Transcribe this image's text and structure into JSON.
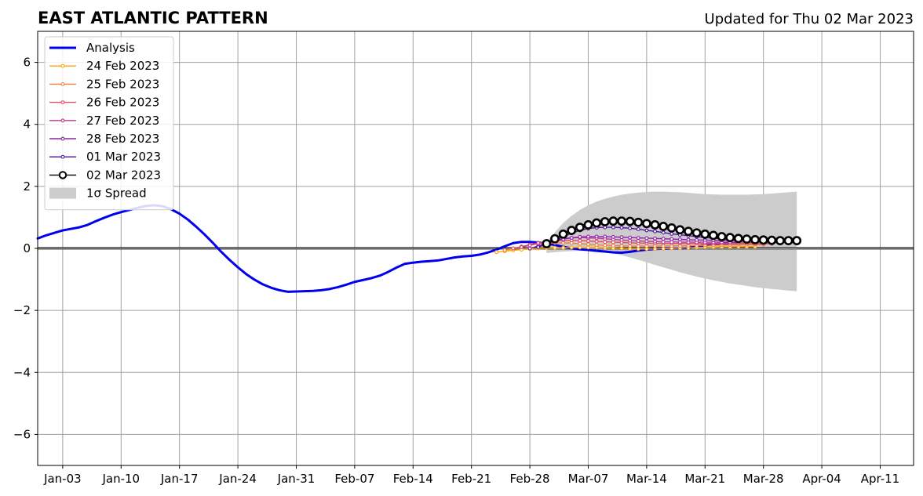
{
  "chart_data": {
    "type": "line",
    "title": "EAST ATLANTIC PATTERN",
    "subtitle": "Updated for Thu 02 Mar 2023",
    "xlabel": "",
    "ylabel": "",
    "x_axis": {
      "type": "date",
      "range": [
        "2022-12-31",
        "2023-04-15"
      ],
      "ticks": [
        {
          "date": "2023-01-03",
          "label": "Jan-03"
        },
        {
          "date": "2023-01-10",
          "label": "Jan-10"
        },
        {
          "date": "2023-01-17",
          "label": "Jan-17"
        },
        {
          "date": "2023-01-24",
          "label": "Jan-24"
        },
        {
          "date": "2023-01-31",
          "label": "Jan-31"
        },
        {
          "date": "2023-02-07",
          "label": "Feb-07"
        },
        {
          "date": "2023-02-14",
          "label": "Feb-14"
        },
        {
          "date": "2023-02-21",
          "label": "Feb-21"
        },
        {
          "date": "2023-02-28",
          "label": "Feb-28"
        },
        {
          "date": "2023-03-07",
          "label": "Mar-07"
        },
        {
          "date": "2023-03-14",
          "label": "Mar-14"
        },
        {
          "date": "2023-03-21",
          "label": "Mar-21"
        },
        {
          "date": "2023-03-28",
          "label": "Mar-28"
        },
        {
          "date": "2023-04-04",
          "label": "Apr-04"
        },
        {
          "date": "2023-04-11",
          "label": "Apr-11"
        }
      ]
    },
    "y_axis": {
      "range": [
        -7,
        7
      ],
      "ticks": [
        {
          "value": -6,
          "label": "−6"
        },
        {
          "value": -4,
          "label": "−4"
        },
        {
          "value": -2,
          "label": "−2"
        },
        {
          "value": 0,
          "label": "0"
        },
        {
          "value": 2,
          "label": "2"
        },
        {
          "value": 4,
          "label": "4"
        },
        {
          "value": 6,
          "label": "6"
        }
      ]
    },
    "grid": true,
    "zero_line": true,
    "legend": {
      "placement": "top-left"
    },
    "analysis": {
      "name": "Analysis",
      "color": "#0000ee",
      "start_date": "2022-12-31",
      "values": [
        0.32,
        0.42,
        0.5,
        0.58,
        0.63,
        0.68,
        0.76,
        0.88,
        0.99,
        1.09,
        1.17,
        1.24,
        1.31,
        1.37,
        1.39,
        1.36,
        1.26,
        1.12,
        0.93,
        0.7,
        0.45,
        0.18,
        -0.11,
        -0.37,
        -0.61,
        -0.83,
        -1.01,
        -1.16,
        -1.27,
        -1.35,
        -1.4,
        -1.39,
        -1.38,
        -1.37,
        -1.35,
        -1.31,
        -1.25,
        -1.17,
        -1.08,
        -1.02,
        -0.96,
        -0.88,
        -0.76,
        -0.62,
        -0.5,
        -0.46,
        -0.43,
        -0.41,
        -0.39,
        -0.34,
        -0.29,
        -0.26,
        -0.24,
        -0.2,
        -0.13,
        -0.04,
        0.07,
        0.17,
        0.21,
        0.21,
        0.19,
        0.16,
        0.11,
        0.05,
        0.0,
        -0.03,
        -0.05,
        -0.08,
        -0.1,
        -0.13,
        -0.14,
        -0.11,
        -0.07,
        -0.04,
        -0.02,
        -0.01,
        0.0,
        0.0,
        0.02,
        0.06,
        0.1,
        0.13,
        0.15,
        0.17,
        0.18
      ]
    },
    "spread": {
      "name": "1σ Spread",
      "color": "#cccccc",
      "start_date": "2023-03-02",
      "upper": [
        0.2,
        0.52,
        0.82,
        1.05,
        1.24,
        1.39,
        1.51,
        1.6,
        1.67,
        1.73,
        1.77,
        1.8,
        1.82,
        1.83,
        1.83,
        1.82,
        1.81,
        1.79,
        1.77,
        1.75,
        1.74,
        1.73,
        1.73,
        1.73,
        1.73,
        1.74,
        1.75,
        1.77,
        1.79,
        1.81,
        1.83
      ],
      "lower": [
        -0.15,
        -0.12,
        -0.1,
        -0.09,
        -0.08,
        -0.08,
        -0.09,
        -0.12,
        -0.16,
        -0.22,
        -0.29,
        -0.37,
        -0.45,
        -0.53,
        -0.61,
        -0.69,
        -0.77,
        -0.84,
        -0.91,
        -0.97,
        -1.03,
        -1.08,
        -1.13,
        -1.17,
        -1.21,
        -1.25,
        -1.28,
        -1.31,
        -1.33,
        -1.36,
        -1.38
      ]
    },
    "forecasts": [
      {
        "name": "24 Feb 2023",
        "color": "#ffa500",
        "marker": "small",
        "start_date": "2023-02-24",
        "values": [
          -0.12,
          -0.09,
          -0.06,
          -0.04,
          -0.02,
          0.0,
          0.01,
          0.02,
          0.02,
          0.03,
          0.03,
          0.03,
          0.03,
          0.02,
          0.01,
          0.0,
          -0.01,
          -0.02,
          -0.02,
          -0.02,
          -0.01,
          0.0,
          0.01,
          0.02,
          0.03,
          0.04,
          0.04,
          0.05,
          0.05,
          0.06,
          0.06,
          0.06
        ]
      },
      {
        "name": "25 Feb 2023",
        "color": "#f08040",
        "marker": "small",
        "start_date": "2023-02-25",
        "values": [
          -0.06,
          -0.01,
          0.05,
          0.11,
          0.15,
          0.17,
          0.18,
          0.18,
          0.17,
          0.15,
          0.13,
          0.11,
          0.1,
          0.09,
          0.08,
          0.07,
          0.07,
          0.07,
          0.07,
          0.08,
          0.08,
          0.08,
          0.09,
          0.09,
          0.1,
          0.1,
          0.11,
          0.11,
          0.12,
          0.12,
          0.12,
          0.12
        ]
      },
      {
        "name": "26 Feb 2023",
        "color": "#e05060",
        "marker": "small",
        "start_date": "2023-02-26",
        "values": [
          0.0,
          0.06,
          0.12,
          0.18,
          0.22,
          0.25,
          0.26,
          0.26,
          0.25,
          0.24,
          0.22,
          0.21,
          0.2,
          0.19,
          0.18,
          0.17,
          0.17,
          0.16,
          0.16,
          0.16,
          0.16,
          0.16,
          0.16,
          0.16,
          0.16,
          0.16,
          0.16,
          0.16,
          0.16,
          0.15,
          0.15,
          0.15
        ]
      },
      {
        "name": "27 Feb 2023",
        "color": "#c03890",
        "marker": "small",
        "start_date": "2023-02-27",
        "values": [
          0.04,
          0.1,
          0.17,
          0.23,
          0.28,
          0.32,
          0.34,
          0.35,
          0.34,
          0.33,
          0.31,
          0.29,
          0.27,
          0.25,
          0.24,
          0.23,
          0.22,
          0.21,
          0.21,
          0.2,
          0.2,
          0.2,
          0.2,
          0.2,
          0.2,
          0.2,
          0.2,
          0.2,
          0.19,
          0.19,
          0.19,
          0.19
        ]
      },
      {
        "name": "28 Feb 2023",
        "color": "#9020b0",
        "marker": "small",
        "start_date": "2023-02-28",
        "values": [
          0.0,
          0.08,
          0.16,
          0.24,
          0.3,
          0.34,
          0.37,
          0.38,
          0.38,
          0.38,
          0.37,
          0.36,
          0.35,
          0.34,
          0.33,
          0.32,
          0.31,
          0.3,
          0.29,
          0.28,
          0.27,
          0.27,
          0.26,
          0.26,
          0.25,
          0.25,
          0.25,
          0.25,
          0.25,
          0.25,
          0.25,
          0.25
        ]
      },
      {
        "name": "01 Mar 2023",
        "color": "#5010a0",
        "marker": "small",
        "start_date": "2023-03-01",
        "values": [
          0.04,
          0.14,
          0.26,
          0.38,
          0.49,
          0.58,
          0.64,
          0.67,
          0.68,
          0.68,
          0.67,
          0.65,
          0.62,
          0.58,
          0.55,
          0.51,
          0.47,
          0.44,
          0.41,
          0.38,
          0.35,
          0.33,
          0.31,
          0.3,
          0.29,
          0.28,
          0.27,
          0.26,
          0.26,
          0.25,
          0.25,
          0.25
        ]
      },
      {
        "name": "02 Mar 2023",
        "color": "#000000",
        "marker": "circle",
        "start_date": "2023-03-02",
        "values": [
          0.15,
          0.31,
          0.46,
          0.58,
          0.68,
          0.76,
          0.82,
          0.86,
          0.88,
          0.88,
          0.87,
          0.84,
          0.8,
          0.76,
          0.71,
          0.66,
          0.6,
          0.55,
          0.5,
          0.46,
          0.42,
          0.38,
          0.35,
          0.32,
          0.3,
          0.28,
          0.27,
          0.26,
          0.25,
          0.25,
          0.25
        ]
      }
    ]
  }
}
